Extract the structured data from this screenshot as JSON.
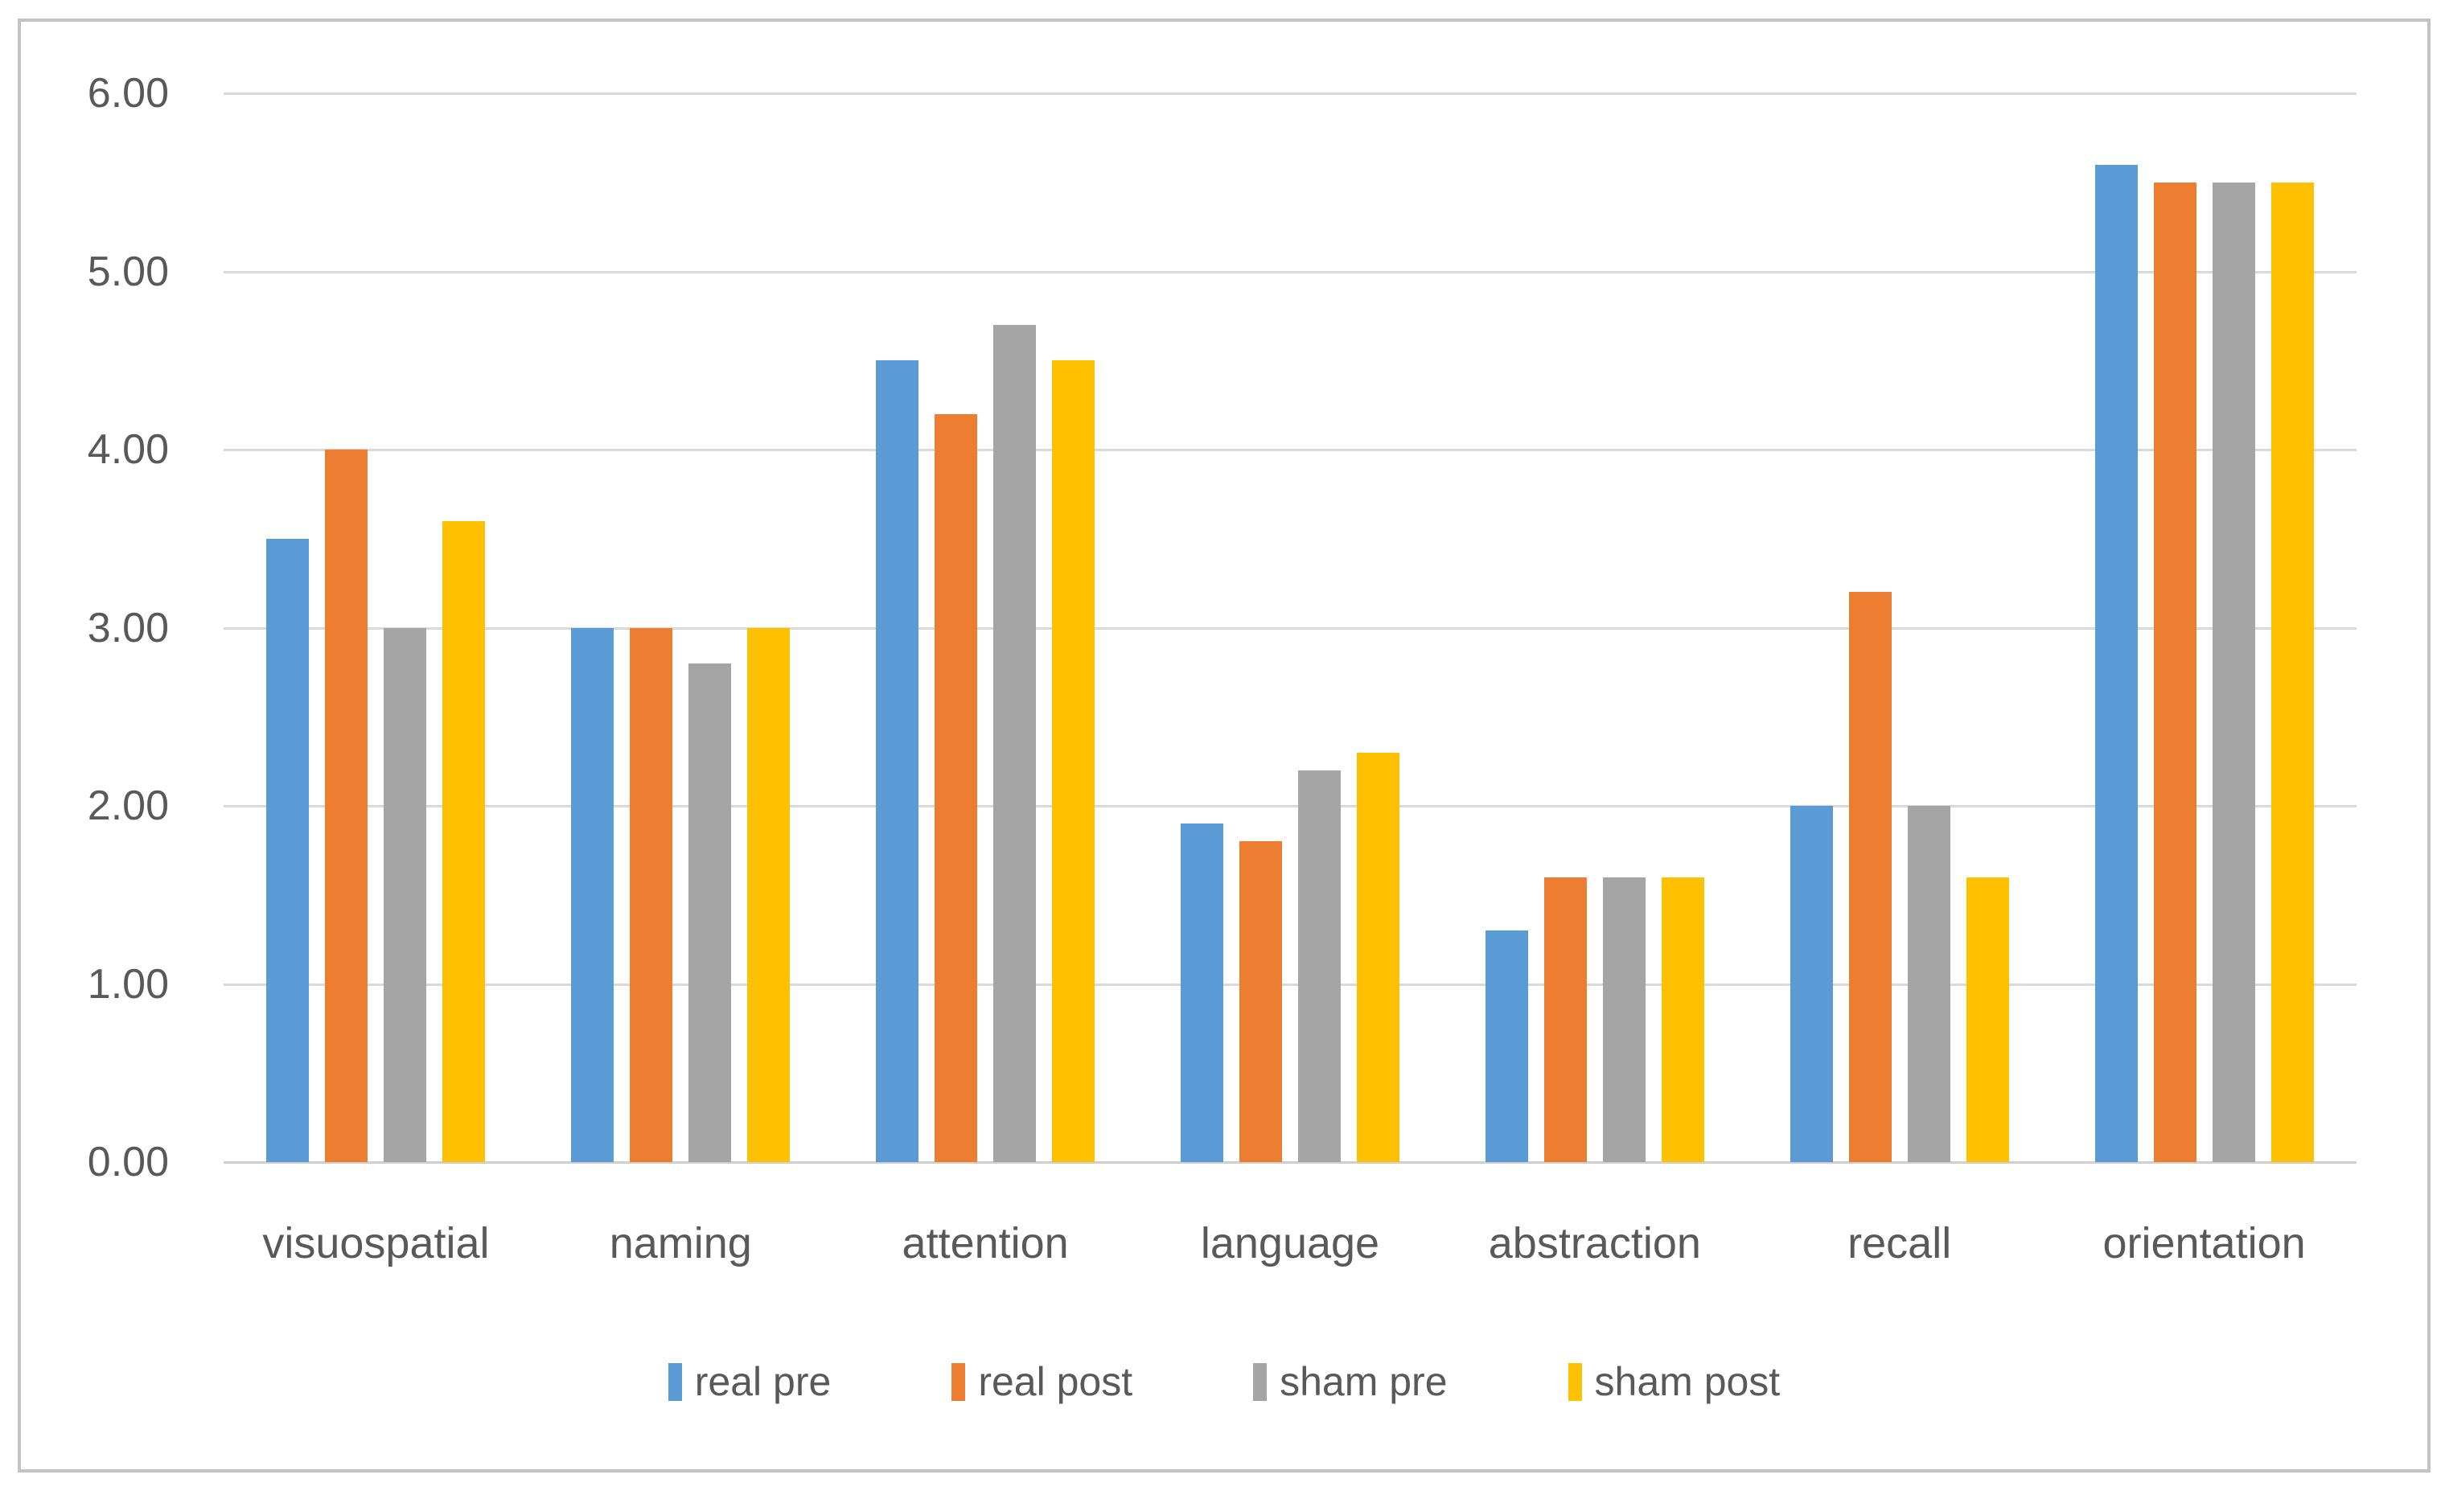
{
  "chart_data": {
    "type": "bar",
    "title": "",
    "xlabel": "",
    "ylabel": "",
    "categories": [
      "visuospatial",
      "naming",
      "attention",
      "language",
      "abstraction",
      "recall",
      "orientation"
    ],
    "series": [
      {
        "name": "real pre",
        "color": "#5B9BD5",
        "values": [
          3.5,
          3.0,
          4.5,
          1.9,
          1.3,
          2.0,
          5.6
        ]
      },
      {
        "name": "real post",
        "color": "#ED7D31",
        "values": [
          4.0,
          3.0,
          4.2,
          1.8,
          1.6,
          3.2,
          5.5
        ]
      },
      {
        "name": "sham pre",
        "color": "#A5A5A5",
        "values": [
          3.0,
          2.8,
          4.7,
          2.2,
          1.6,
          2.0,
          5.5
        ]
      },
      {
        "name": "sham post",
        "color": "#FFC000",
        "values": [
          3.6,
          3.0,
          4.5,
          2.3,
          1.6,
          1.6,
          5.5
        ]
      }
    ],
    "y_axis": {
      "min": 0,
      "max": 6,
      "step": 1,
      "tick_labels": [
        "0.00",
        "1.00",
        "2.00",
        "3.00",
        "4.00",
        "5.00",
        "6.00"
      ]
    },
    "grid": true,
    "legend_position": "bottom",
    "colors": {
      "gridline": "#D9D9D9",
      "axis_text": "#595959",
      "frame_border": "#C3C3C3",
      "background": "#FFFFFF"
    }
  }
}
